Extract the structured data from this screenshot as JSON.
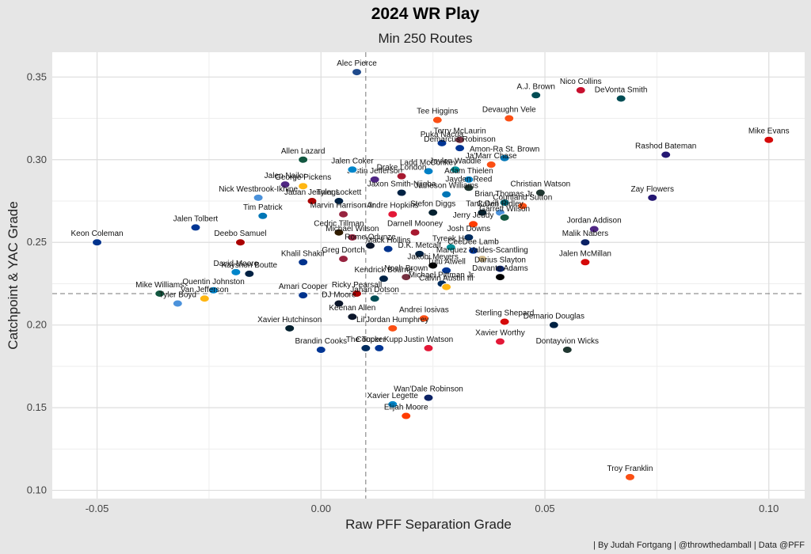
{
  "chart_data": {
    "type": "scatter",
    "title": "2024 WR Play",
    "subtitle": "Min 250 Routes",
    "xlabel": "Raw PFF Separation Grade",
    "ylabel": "Catchpoint & YAC Grade",
    "xlim": [
      -0.06,
      0.108
    ],
    "ylim": [
      0.095,
      0.365
    ],
    "x_ticks": [
      -0.05,
      0.0,
      0.05,
      0.1
    ],
    "x_tick_labels": [
      "-0.05",
      "0.00",
      "0.05",
      "0.10"
    ],
    "y_ticks": [
      0.1,
      0.15,
      0.2,
      0.25,
      0.3,
      0.35
    ],
    "y_tick_labels": [
      "0.10",
      "0.15",
      "0.20",
      "0.25",
      "0.30",
      "0.35"
    ],
    "grid": true,
    "reference_lines": {
      "x": 0.01,
      "y": 0.219
    },
    "caption": "| By Judah Fortgang | @throwthedamball | Data @PFF",
    "points": [
      {
        "name": "Alec Pierce",
        "x": 0.008,
        "y": 0.353,
        "color": "#1f4a8c"
      },
      {
        "name": "Nico Collins",
        "x": 0.058,
        "y": 0.342,
        "color": "#c8102e"
      },
      {
        "name": "A.J. Brown",
        "x": 0.048,
        "y": 0.339,
        "color": "#004c54"
      },
      {
        "name": "DeVonta Smith",
        "x": 0.067,
        "y": 0.337,
        "color": "#004c54"
      },
      {
        "name": "Tee Higgins",
        "x": 0.026,
        "y": 0.324,
        "color": "#fb4f14"
      },
      {
        "name": "Devaughn Vele",
        "x": 0.042,
        "y": 0.325,
        "color": "#fb4f14"
      },
      {
        "name": "Mike Evans",
        "x": 0.1,
        "y": 0.312,
        "color": "#d50a0a"
      },
      {
        "name": "Terry McLaurin",
        "x": 0.031,
        "y": 0.312,
        "color": "#773141"
      },
      {
        "name": "Puka Nacua",
        "x": 0.027,
        "y": 0.31,
        "color": "#003594"
      },
      {
        "name": "Demarcus Robinson",
        "x": 0.031,
        "y": 0.307,
        "color": "#003594"
      },
      {
        "name": "Rashod Bateman",
        "x": 0.077,
        "y": 0.303,
        "color": "#241773"
      },
      {
        "name": "Allen Lazard",
        "x": -0.004,
        "y": 0.3,
        "color": "#125740"
      },
      {
        "name": "Amon-Ra St. Brown",
        "x": 0.041,
        "y": 0.301,
        "color": "#0076b6"
      },
      {
        "name": "Justin Jefferson",
        "x": 0.012,
        "y": 0.288,
        "color": "#4f2683"
      },
      {
        "name": "Ladd McConkey",
        "x": 0.024,
        "y": 0.293,
        "color": "#0080c6"
      },
      {
        "name": "Ja'Marr Chase",
        "x": 0.038,
        "y": 0.297,
        "color": "#fb4f14"
      },
      {
        "name": "Jalen Coker",
        "x": 0.007,
        "y": 0.294,
        "color": "#0085ca"
      },
      {
        "name": "Drake London",
        "x": 0.018,
        "y": 0.29,
        "color": "#a71930"
      },
      {
        "name": "Jaylen Waddle",
        "x": 0.03,
        "y": 0.294,
        "color": "#008e97"
      },
      {
        "name": "Adam Thielen",
        "x": 0.033,
        "y": 0.288,
        "color": "#0085ca"
      },
      {
        "name": "George Pickens",
        "x": -0.004,
        "y": 0.284,
        "color": "#ffb612"
      },
      {
        "name": "Jalen Nailor",
        "x": -0.008,
        "y": 0.285,
        "color": "#4f2683"
      },
      {
        "name": "Jaxon Smith-Njigba",
        "x": 0.018,
        "y": 0.28,
        "color": "#002244"
      },
      {
        "name": "Christian Watson",
        "x": 0.049,
        "y": 0.28,
        "color": "#203731"
      },
      {
        "name": "Jayden Reed",
        "x": 0.033,
        "y": 0.283,
        "color": "#203731"
      },
      {
        "name": "Zay Flowers",
        "x": 0.074,
        "y": 0.277,
        "color": "#241773"
      },
      {
        "name": "Tyler Lockett",
        "x": 0.004,
        "y": 0.275,
        "color": "#002244"
      },
      {
        "name": "Jameson Williams",
        "x": 0.028,
        "y": 0.279,
        "color": "#0076b6"
      },
      {
        "name": "Nick Westbrook-Ikhine",
        "x": -0.014,
        "y": 0.277,
        "color": "#4b92db"
      },
      {
        "name": "Jauan Jennings",
        "x": -0.002,
        "y": 0.275,
        "color": "#aa0000"
      },
      {
        "name": "Brian Thomas Jr.",
        "x": 0.041,
        "y": 0.274,
        "color": "#006778"
      },
      {
        "name": "Courtland Sutton",
        "x": 0.045,
        "y": 0.272,
        "color": "#fb4f14"
      },
      {
        "name": "Marvin Harrison Jr.",
        "x": 0.005,
        "y": 0.267,
        "color": "#97233f"
      },
      {
        "name": "Andre Hopkins",
        "x": 0.016,
        "y": 0.267,
        "color": "#e31837"
      },
      {
        "name": "Stefon Diggs",
        "x": 0.025,
        "y": 0.268,
        "color": "#03202f"
      },
      {
        "name": "Tank Dell",
        "x": 0.036,
        "y": 0.268,
        "color": "#03202f"
      },
      {
        "name": "Calvin Ridley",
        "x": 0.04,
        "y": 0.268,
        "color": "#4b92db"
      },
      {
        "name": "Tim Patrick",
        "x": -0.013,
        "y": 0.266,
        "color": "#0076b6"
      },
      {
        "name": "Jalen Tolbert",
        "x": -0.028,
        "y": 0.259,
        "color": "#003594"
      },
      {
        "name": "Jerry Jeudy",
        "x": 0.034,
        "y": 0.261,
        "color": "#ff3c00"
      },
      {
        "name": "Cedric Tillman",
        "x": 0.004,
        "y": 0.256,
        "color": "#311d00"
      },
      {
        "name": "Michael Wilson",
        "x": 0.007,
        "y": 0.253,
        "color": "#97233f"
      },
      {
        "name": "Darnell Mooney",
        "x": 0.021,
        "y": 0.256,
        "color": "#a71930"
      },
      {
        "name": "Garrett Wilson",
        "x": 0.041,
        "y": 0.265,
        "color": "#125740"
      },
      {
        "name": "Jordan Addison",
        "x": 0.061,
        "y": 0.258,
        "color": "#4f2683"
      },
      {
        "name": "Deebo Samuel",
        "x": -0.018,
        "y": 0.25,
        "color": "#aa0000"
      },
      {
        "name": "Keon Coleman",
        "x": -0.05,
        "y": 0.25,
        "color": "#00338d"
      },
      {
        "name": "Rome Odunze",
        "x": 0.011,
        "y": 0.248,
        "color": "#0b162a"
      },
      {
        "name": "Tyreek Hill",
        "x": 0.029,
        "y": 0.247,
        "color": "#008e97"
      },
      {
        "name": "Josh Downs",
        "x": 0.033,
        "y": 0.253,
        "color": "#002c5f"
      },
      {
        "name": "Malik Nabers",
        "x": 0.059,
        "y": 0.25,
        "color": "#0b2265"
      },
      {
        "name": "Mack Hollins",
        "x": 0.015,
        "y": 0.246,
        "color": "#00338d"
      },
      {
        "name": "D.K. Metcalf",
        "x": 0.022,
        "y": 0.243,
        "color": "#002244"
      },
      {
        "name": "CeeDee Lamb",
        "x": 0.034,
        "y": 0.245,
        "color": "#003594"
      },
      {
        "name": "Khalil Shakir",
        "x": -0.004,
        "y": 0.238,
        "color": "#00338d"
      },
      {
        "name": "Greg Dortch",
        "x": 0.005,
        "y": 0.24,
        "color": "#97233f"
      },
      {
        "name": "David Moore",
        "x": -0.019,
        "y": 0.232,
        "color": "#0085ca"
      },
      {
        "name": "Marquez Valdes-Scantling",
        "x": 0.036,
        "y": 0.24,
        "color": "#d3bc8d"
      },
      {
        "name": "Jalen McMillan",
        "x": 0.059,
        "y": 0.238,
        "color": "#d50a0a"
      },
      {
        "name": "Jakobi Meyers",
        "x": 0.025,
        "y": 0.236,
        "color": "#000000"
      },
      {
        "name": "Tutu Atwell",
        "x": 0.028,
        "y": 0.233,
        "color": "#003594"
      },
      {
        "name": "Darius Slayton",
        "x": 0.04,
        "y": 0.234,
        "color": "#0b2265"
      },
      {
        "name": "Kayshon Boutte",
        "x": -0.016,
        "y": 0.231,
        "color": "#002244"
      },
      {
        "name": "Kendrick Bourne",
        "x": 0.014,
        "y": 0.228,
        "color": "#002244"
      },
      {
        "name": "Noah Brown",
        "x": 0.019,
        "y": 0.229,
        "color": "#773141"
      },
      {
        "name": "Michael Pittman Jr.",
        "x": 0.027,
        "y": 0.225,
        "color": "#002c5f"
      },
      {
        "name": "Davante Adams",
        "x": 0.04,
        "y": 0.229,
        "color": "#000000"
      },
      {
        "name": "Quentin Johnston",
        "x": -0.024,
        "y": 0.221,
        "color": "#0080c6"
      },
      {
        "name": "Mike Williams",
        "x": -0.036,
        "y": 0.219,
        "color": "#125740"
      },
      {
        "name": "Amari Cooper",
        "x": -0.004,
        "y": 0.218,
        "color": "#00338d"
      },
      {
        "name": "Ricky Pearsall",
        "x": 0.008,
        "y": 0.219,
        "color": "#aa0000"
      },
      {
        "name": "Calvin Austin III",
        "x": 0.028,
        "y": 0.223,
        "color": "#ffb612"
      },
      {
        "name": "Van Jefferson",
        "x": -0.026,
        "y": 0.216,
        "color": "#ffb612"
      },
      {
        "name": "DJ Moore",
        "x": 0.004,
        "y": 0.213,
        "color": "#0b162a"
      },
      {
        "name": "Jahan Dotson",
        "x": 0.012,
        "y": 0.216,
        "color": "#004c54"
      },
      {
        "name": "Tyler Boyd",
        "x": -0.032,
        "y": 0.213,
        "color": "#4b92db"
      },
      {
        "name": "Andrei Iosivas",
        "x": 0.023,
        "y": 0.204,
        "color": "#fb4f14"
      },
      {
        "name": "Sterling Shepard",
        "x": 0.041,
        "y": 0.202,
        "color": "#d50a0a"
      },
      {
        "name": "Demario Douglas",
        "x": 0.052,
        "y": 0.2,
        "color": "#002244"
      },
      {
        "name": "Keenan Allen",
        "x": 0.007,
        "y": 0.205,
        "color": "#0b162a"
      },
      {
        "name": "Xavier Hutchinson",
        "x": -0.007,
        "y": 0.198,
        "color": "#03202f"
      },
      {
        "name": "Lil'Jordan Humphrey",
        "x": 0.016,
        "y": 0.198,
        "color": "#fb4f14"
      },
      {
        "name": "Xavier Worthy",
        "x": 0.04,
        "y": 0.19,
        "color": "#e31837"
      },
      {
        "name": "Dontayvion Wicks",
        "x": 0.055,
        "y": 0.185,
        "color": "#203731"
      },
      {
        "name": "Brandin Cooks",
        "x": 0.0,
        "y": 0.185,
        "color": "#003594"
      },
      {
        "name": "The Tucker",
        "x": 0.01,
        "y": 0.186,
        "color": "#002c5f"
      },
      {
        "name": "Cooper Kupp",
        "x": 0.013,
        "y": 0.186,
        "color": "#003594"
      },
      {
        "name": "Justin Watson",
        "x": 0.024,
        "y": 0.186,
        "color": "#e31837"
      },
      {
        "name": "Wan'Dale Robinson",
        "x": 0.024,
        "y": 0.156,
        "color": "#0b2265"
      },
      {
        "name": "Xavier Legette",
        "x": 0.016,
        "y": 0.152,
        "color": "#0085ca"
      },
      {
        "name": "Elijah Moore",
        "x": 0.019,
        "y": 0.145,
        "color": "#ff3c00"
      },
      {
        "name": "Troy Franklin",
        "x": 0.069,
        "y": 0.108,
        "color": "#fb4f14"
      }
    ]
  }
}
